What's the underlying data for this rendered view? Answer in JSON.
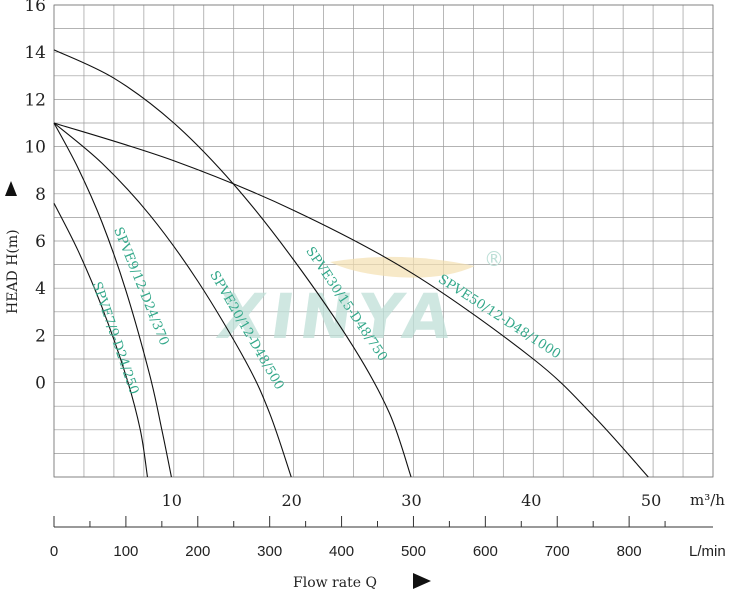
{
  "chart_data": {
    "type": "line",
    "title": "",
    "ylabel": "HEAD H(m)",
    "xlabel": "Flow rate Q",
    "x_unit_primary": "m³/h",
    "x_unit_secondary": "L/min",
    "watermark": "XINYA",
    "registered_mark": "®",
    "x_range": [
      0,
      55
    ],
    "y_range": [
      -4,
      16
    ],
    "y_ticks": [
      16,
      14,
      12,
      10,
      8,
      6,
      4,
      2,
      0
    ],
    "x_ticks_m3h": [
      10,
      20,
      30,
      40,
      50
    ],
    "x_ticks_lmin": [
      0,
      100,
      200,
      300,
      400,
      500,
      600,
      700,
      800
    ],
    "grid": true,
    "series": [
      {
        "name": "SPVE7/9-D24/250",
        "points": [
          [
            0,
            7.6
          ],
          [
            2,
            5.6
          ],
          [
            4,
            3.2
          ],
          [
            6,
            0.3
          ],
          [
            7.2,
            -2.0
          ],
          [
            7.8,
            -4.0
          ]
        ]
      },
      {
        "name": "SPVE9/12-D24/370",
        "points": [
          [
            0,
            11.0
          ],
          [
            2,
            9.1
          ],
          [
            4,
            6.8
          ],
          [
            6,
            3.9
          ],
          [
            8,
            0.3
          ],
          [
            9.0,
            -2.0
          ],
          [
            9.8,
            -4.0
          ]
        ]
      },
      {
        "name": "SPVE20/12-D48/500",
        "points": [
          [
            0,
            11.0
          ],
          [
            4,
            9.3
          ],
          [
            8,
            7.1
          ],
          [
            12,
            4.3
          ],
          [
            16,
            0.9
          ],
          [
            18,
            -1.3
          ],
          [
            19.8,
            -4.0
          ]
        ]
      },
      {
        "name": "SPVE30/15-D48/750",
        "points": [
          [
            0,
            14.1
          ],
          [
            5,
            12.9
          ],
          [
            10,
            11.0
          ],
          [
            15,
            8.4
          ],
          [
            20,
            5.2
          ],
          [
            25,
            1.5
          ],
          [
            28,
            -1.3
          ],
          [
            29.8,
            -4.0
          ]
        ]
      },
      {
        "name": "SPVE50/12-D48/1000",
        "points": [
          [
            0,
            11.0
          ],
          [
            10,
            9.4
          ],
          [
            20,
            7.3
          ],
          [
            30,
            4.6
          ],
          [
            40,
            1.0
          ],
          [
            45,
            -1.4
          ],
          [
            49.6,
            -4.0
          ]
        ]
      }
    ]
  }
}
